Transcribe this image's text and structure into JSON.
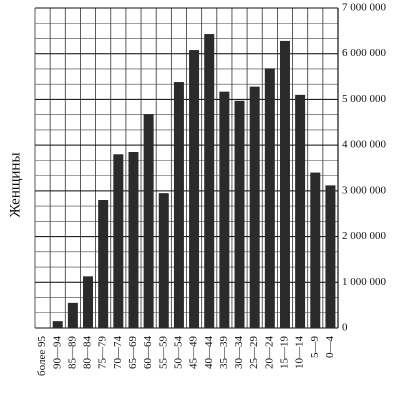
{
  "chart_data": {
    "type": "bar",
    "ylabel": "Женщины",
    "categories": [
      "более 95",
      "90—94",
      "85—89",
      "80—84",
      "75—79",
      "70—74",
      "65—69",
      "60—64",
      "55—59",
      "50—54",
      "45—49",
      "40—44",
      "35—39",
      "30—34",
      "25—29",
      "20—24",
      "15—19",
      "10—14",
      "5—9",
      "0—4"
    ],
    "values": [
      0,
      150000,
      550000,
      1130000,
      2800000,
      3800000,
      3850000,
      4680000,
      2950000,
      5380000,
      6080000,
      6430000,
      5170000,
      4970000,
      5280000,
      5680000,
      6280000,
      5100000,
      3400000,
      3120000
    ],
    "color": "#2b2b2b",
    "ylim": [
      0,
      7000000
    ],
    "yticks": [
      0,
      {
        "value": 1000000,
        "label": "1 000 000"
      },
      {
        "value": 2000000,
        "label": "2 000 000"
      },
      {
        "value": 3000000,
        "label": "3 000 000"
      },
      {
        "value": 4000000,
        "label": "4 000 000"
      },
      {
        "value": 5000000,
        "label": "5 000 000"
      },
      {
        "value": 6000000,
        "label": "6 000 000"
      },
      {
        "value": 7000000,
        "label": "7 000 000"
      }
    ],
    "grid": true
  }
}
